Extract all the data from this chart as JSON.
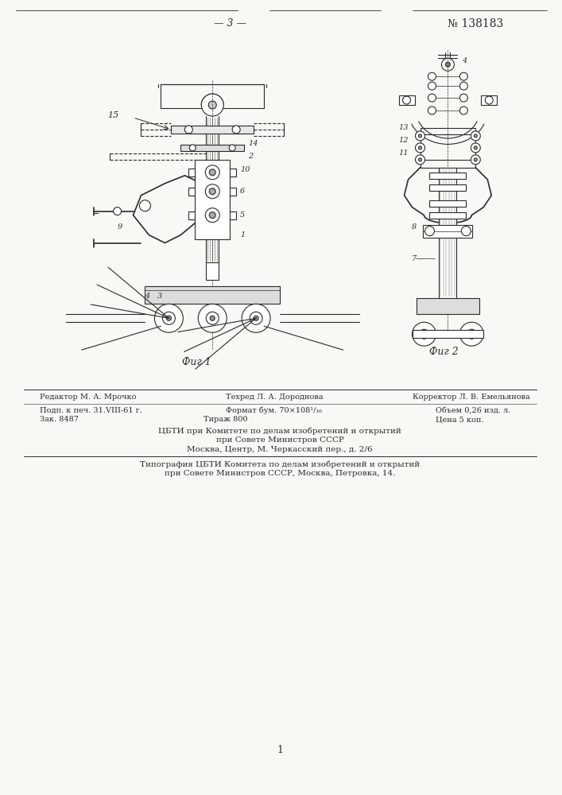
{
  "page_num": "— 3 —",
  "patent_num": "№ 138183",
  "fig1_label": "Фиг 1",
  "fig2_label": "Фиг 2",
  "footer_line1": "ЦБТИ при Комитете по делам изобретений и открытий",
  "footer_line2": "при Совете Министров СССР",
  "footer_line3": "Москва, Центр, М. Черкасский пер., д. 2/6",
  "footer_line4": "Типография ЦБТИ Комитета по делам изобретений и открытий",
  "footer_line5": "при Совете Министров СССР, Москва, Петровка, 14.",
  "editor_text": "Редактор М. А. Мрочко",
  "techred_text": "Техред Л. А. Дороднова",
  "korrektor_text": "Корректор Л. В. Емельянова",
  "podp_text": "Подп. к печ. 31.VIII-61 г.",
  "format_text": "Формат бум. 70×108¹/₁₆",
  "obem_text": "Объем 0,26 изд. л.",
  "zak_text": "Зак. 8487",
  "tirazh_text": "Тираж 800",
  "cena_text": "Цена 5 коп.",
  "bg_color": "#f8f8f4",
  "line_color": "#2a2a2a",
  "page_number_bottom": "1"
}
